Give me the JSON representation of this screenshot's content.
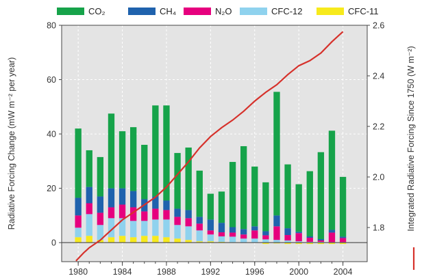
{
  "chart_data": {
    "type": "bar",
    "stacked": true,
    "x": [
      1980,
      1981,
      1982,
      1983,
      1984,
      1985,
      1986,
      1987,
      1988,
      1989,
      1990,
      1991,
      1992,
      1993,
      1994,
      1995,
      1996,
      1997,
      1998,
      1999,
      2000,
      2001,
      2002,
      2003,
      2004
    ],
    "x_ticks": [
      "1980",
      "1984",
      "1988",
      "1992",
      "1996",
      "2000",
      "2004"
    ],
    "y_ticks": [
      "0",
      "20",
      "40",
      "60",
      "80"
    ],
    "y2_ticks": [
      "1.8",
      "2.0",
      "2.2",
      "2.4",
      "2.6"
    ],
    "ylim": [
      -7,
      80
    ],
    "y2lim": [
      1.665,
      2.6
    ],
    "ylabel": "Radiative Forcing Change (mW m⁻² per year)",
    "y2label": "Integrated Radiative Forcing Since 1750 (W m⁻²)",
    "legend_position": "top",
    "grid": true,
    "series": [
      {
        "name": "CFC-11",
        "color": "#f7ea1c",
        "values": [
          2.0,
          2.5,
          1.0,
          2.0,
          2.5,
          2.0,
          2.5,
          2.5,
          2.0,
          1.5,
          1.0,
          0.5,
          0.5,
          0.3,
          0.2,
          0.0,
          0.0,
          -0.5,
          -0.3,
          -0.5,
          -0.5,
          -0.5,
          -0.5,
          -0.5,
          -0.5
        ]
      },
      {
        "name": "CFC-12",
        "color": "#8fd2ee",
        "values": [
          3.5,
          8.0,
          5.5,
          7.0,
          6.5,
          6.0,
          5.5,
          6.0,
          6.5,
          5.0,
          5.0,
          4.0,
          2.5,
          2.0,
          2.0,
          1.5,
          1.5,
          1.2,
          1.0,
          0.8,
          0.5,
          0.3,
          0.3,
          0.2,
          0.2
        ]
      },
      {
        "name": "N₂O",
        "color": "#e6007e",
        "values": [
          4.5,
          4.0,
          4.5,
          4.0,
          5.0,
          5.0,
          3.5,
          4.0,
          3.5,
          3.0,
          3.0,
          2.5,
          1.5,
          1.5,
          1.5,
          1.5,
          3.0,
          1.5,
          5.0,
          2.0,
          3.0,
          1.5,
          0.5,
          3.5,
          1.5
        ]
      },
      {
        "name": "CH₄",
        "color": "#1f62ad",
        "values": [
          6.5,
          6.0,
          6.0,
          7.0,
          6.0,
          6.0,
          4.5,
          4.5,
          3.5,
          3.0,
          3.0,
          2.5,
          4.0,
          3.5,
          2.0,
          2.0,
          1.5,
          1.5,
          4.0,
          2.5,
          0.5,
          0.5,
          0.5,
          1.0,
          0.5
        ]
      },
      {
        "name": "CO₂",
        "color": "#16a34a",
        "values": [
          25.5,
          13.5,
          14.5,
          27.5,
          21.0,
          23.5,
          20.0,
          33.5,
          35.0,
          20.5,
          23.0,
          17.0,
          9.5,
          11.5,
          24.0,
          30.5,
          22.0,
          18.0,
          45.5,
          23.5,
          17.5,
          24.0,
          32.0,
          36.5,
          22.0
        ]
      }
    ],
    "line": {
      "color": "#d6312b",
      "x": [
        1979.8,
        1980.5,
        1981,
        1981.5,
        1982,
        1982.5,
        1983,
        1983.5,
        1984,
        1984.5,
        1985,
        1985.5,
        1986,
        1986.5,
        1987,
        1987.5,
        1988,
        1988.5,
        1989,
        1989.5,
        1990,
        1991,
        1992,
        1993,
        1994,
        1995,
        1996,
        1997,
        1998,
        1999,
        2000,
        2001,
        2002,
        2003,
        2004
      ],
      "y": [
        1.668,
        1.7,
        1.72,
        1.735,
        1.75,
        1.77,
        1.79,
        1.81,
        1.83,
        1.845,
        1.86,
        1.875,
        1.89,
        1.905,
        1.92,
        1.94,
        1.96,
        1.985,
        2.01,
        2.035,
        2.06,
        2.115,
        2.16,
        2.195,
        2.225,
        2.26,
        2.3,
        2.335,
        2.365,
        2.405,
        2.44,
        2.46,
        2.49,
        2.535,
        2.575
      ]
    }
  }
}
